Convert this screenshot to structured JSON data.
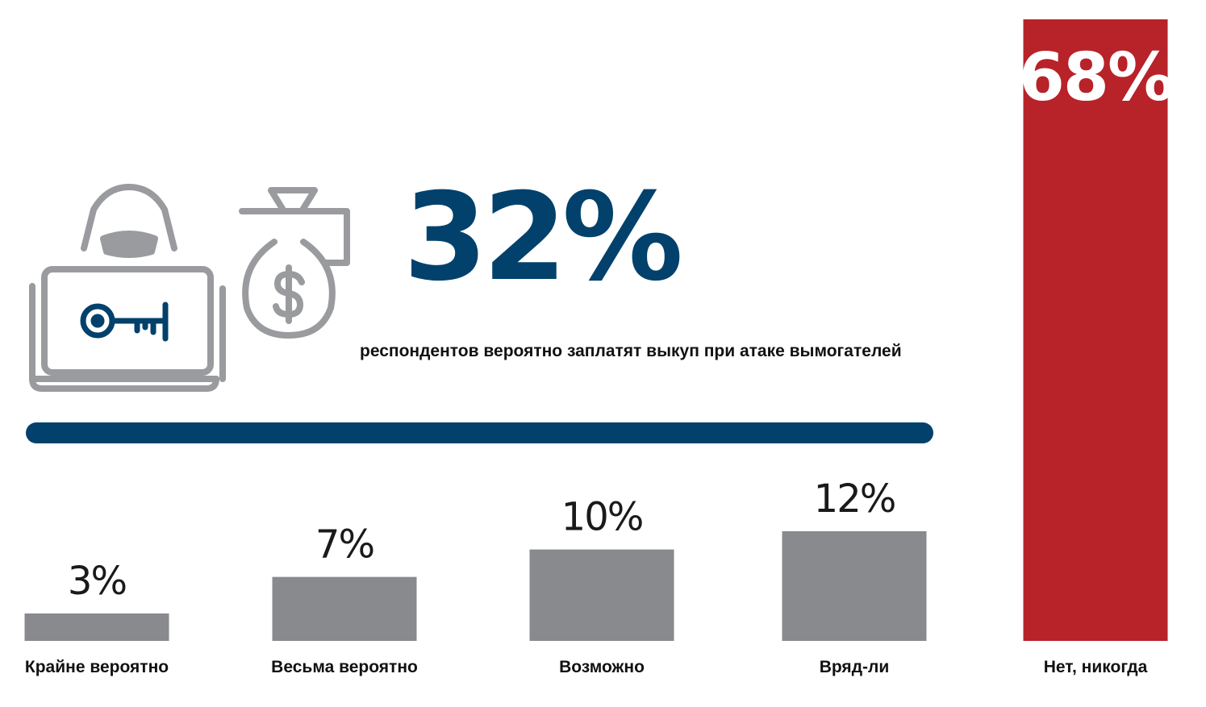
{
  "headline": {
    "value": "32%",
    "text": "респондентов вероятно заплатят выкуп при атаке вымогателей"
  },
  "icons": [
    "hacker-laptop-key-icon",
    "money-bag-dollar-icon"
  ],
  "colors": {
    "accent": "#01416b",
    "gray_bar": "#898a8e",
    "red_bar": "#b82229",
    "icon_gray": "#9a9b9e",
    "text_dark": "#1a1a1a"
  },
  "chart_data": {
    "type": "bar",
    "categories": [
      "Крайне вероятно",
      "Весьма вероятно",
      "Возможно",
      "Вряд-ли",
      "Нет, никогда"
    ],
    "values": [
      3,
      7,
      10,
      12,
      68
    ],
    "value_labels": [
      "3%",
      "7%",
      "10%",
      "12%",
      "68%"
    ],
    "highlight_index": 4,
    "ylim": [
      0,
      68
    ],
    "grid": false
  }
}
